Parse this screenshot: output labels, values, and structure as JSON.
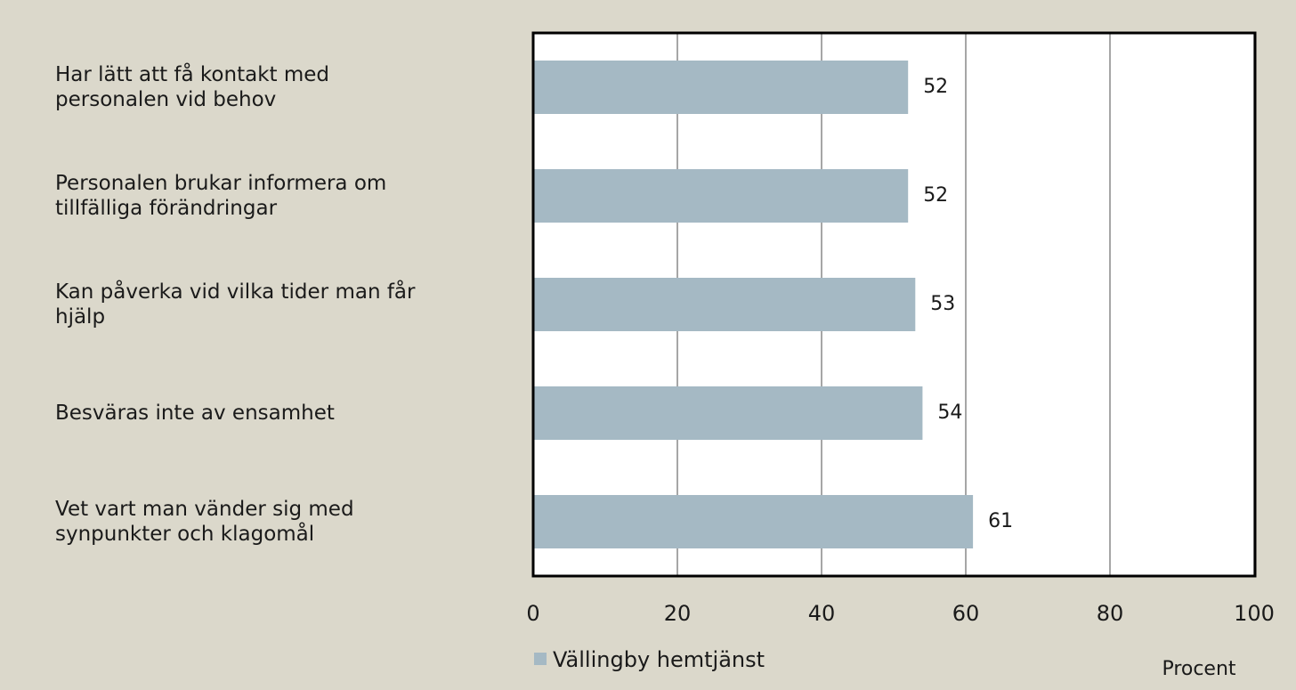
{
  "chart_data": {
    "type": "bar",
    "orientation": "horizontal",
    "categories": [
      "Har lätt att få kontakt med\npersonalen vid behov",
      "Personalen brukar informera om\ntillfälliga förändringar",
      "Kan påverka vid vilka tider man får\nhjälp",
      "Besväras inte av ensamhet",
      "Vet vart man vänder sig med\nsynpunkter och klagomål"
    ],
    "series": [
      {
        "name": "Vällingby hemtjänst",
        "color": "#a5b9c4",
        "values": [
          52,
          52,
          53,
          54,
          61
        ]
      }
    ],
    "xlabel": "Procent",
    "xlim": [
      0,
      100
    ],
    "xticks": [
      0,
      20,
      40,
      60,
      80,
      100
    ],
    "grid": true,
    "legend": "bottom"
  }
}
